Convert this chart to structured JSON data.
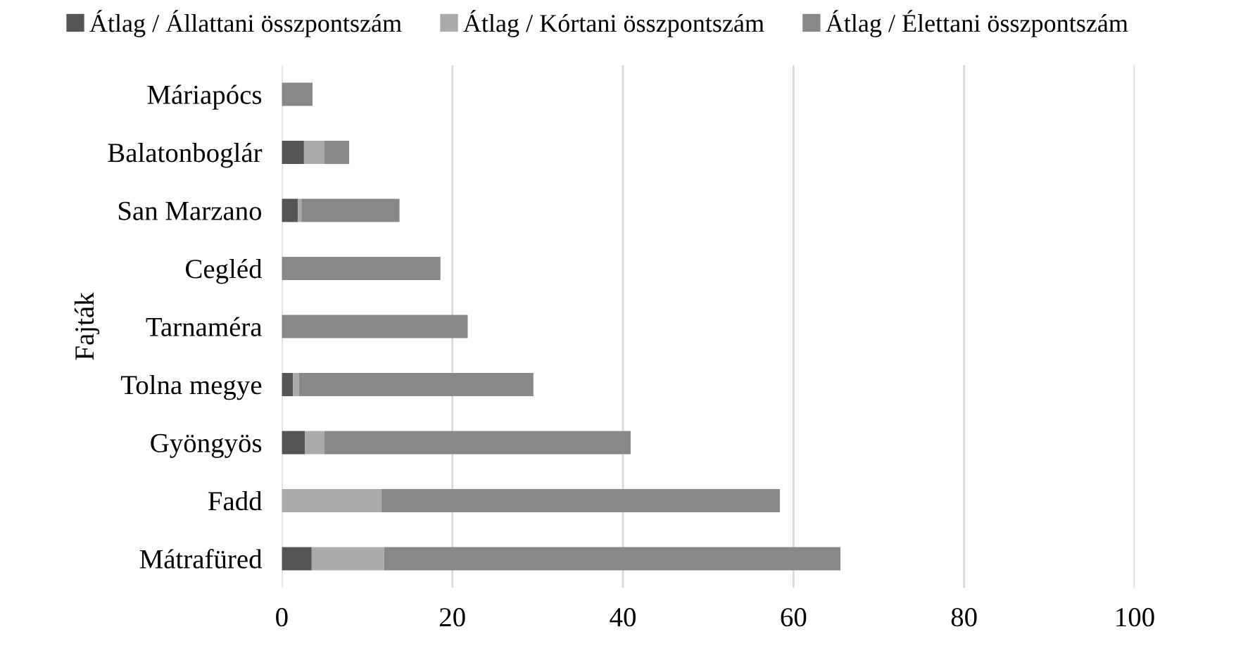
{
  "chart_data": {
    "type": "bar",
    "orientation": "horizontal",
    "stacked": true,
    "ylabel": "Fajták",
    "categories": [
      "Máriapócs",
      "Balatonboglár",
      "San Marzano",
      "Cegléd",
      "Tarnaméra",
      "Tolna megye",
      "Gyöngyös",
      "Fadd",
      "Mátrafüred"
    ],
    "series": [
      {
        "name": "Átlag / Állattani összpontszám",
        "color": "#555555",
        "values": [
          0,
          2.6,
          1.9,
          0,
          0,
          1.3,
          2.7,
          0,
          3.5
        ]
      },
      {
        "name": "Átlag / Kórtani összpontszám",
        "color": "#aaaaaa",
        "values": [
          0,
          2.4,
          0.4,
          0,
          0,
          0.7,
          2.3,
          11.7,
          8.5
        ]
      },
      {
        "name": "Átlag / Élettani összpontszám",
        "color": "#888888",
        "values": [
          3.6,
          2.9,
          11.5,
          18.6,
          21.8,
          27.5,
          35.9,
          46.7,
          53.5
        ]
      }
    ],
    "xlim": [
      0,
      100
    ],
    "xticks": [
      0,
      20,
      40,
      60,
      80,
      100
    ],
    "grid": "x",
    "legend": "top"
  }
}
